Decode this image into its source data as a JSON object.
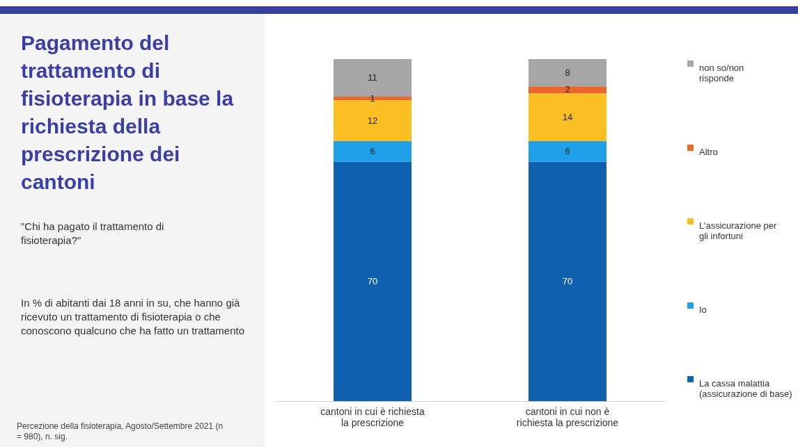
{
  "chart_data": {
    "type": "bar",
    "title": "Pagamento del trattamento di fisioterapia in base la richiesta della prescrizione dei cantoni",
    "subtitle": "\"Chi ha pagato il trattamento di fisioterapia?\"",
    "annotations": [
      "In % di abitanti dai 18 anni in su, che hanno già ricevuto un trattamento di fisioterapia o che conoscono qualcuno che ha fatto un trattamento",
      "Percezione della fisioterapia, Agosto/Settembre 2021 (n = 980), n. sig."
    ],
    "categories": [
      "cantoni in cui è richiesta la prescrizione",
      "cantoni in cui non è richiesta la prescrizione"
    ],
    "stacked": true,
    "data_labels": true,
    "legend": "right",
    "series": [
      {
        "name": "La cassa malattia (assicurazione di base)",
        "color": "#1060b0",
        "values": [
          70,
          70
        ]
      },
      {
        "name": "Io",
        "color": "#1fa0e8",
        "values": [
          6,
          6
        ]
      },
      {
        "name": "L’assicurazione per gli infortuni",
        "color": "#fbbf24",
        "values": [
          12,
          14
        ]
      },
      {
        "name": "Altro",
        "color": "#e8672a",
        "values": [
          1,
          2
        ]
      },
      {
        "name": "non so/non risponde",
        "color": "#a6a6a6",
        "values": [
          11,
          8
        ]
      }
    ]
  }
}
